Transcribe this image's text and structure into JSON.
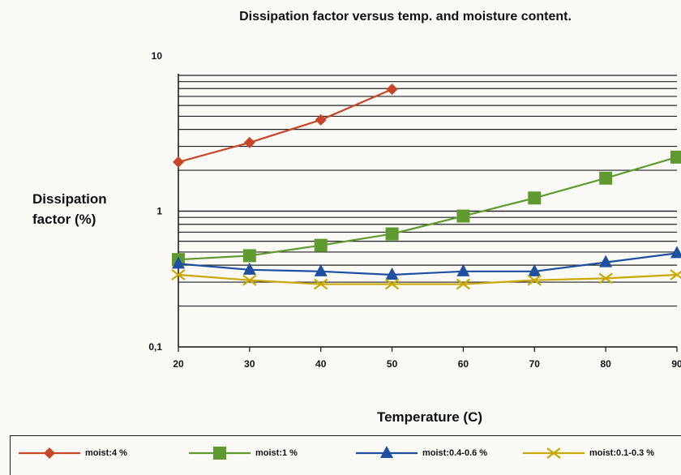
{
  "chart_data": {
    "type": "line",
    "title": "Dissipation factor versus temp. and moisture content.",
    "xlabel": "Temperature (C)",
    "ylabel": "Dissipation factor (%)",
    "yscale": "log",
    "ylim": [
      0.1,
      10
    ],
    "xlim": [
      20,
      90
    ],
    "x_ticks": [
      "20",
      "30",
      "40",
      "50",
      "60",
      "70",
      "80",
      "90"
    ],
    "y_ticks": [
      {
        "value": 10,
        "label": "10"
      },
      {
        "value": 1,
        "label": "1"
      },
      {
        "value": 0.1,
        "label": "0,1"
      }
    ],
    "grid": "horizontal",
    "legend_position": "bottom",
    "series": [
      {
        "name": "moist:4 %",
        "color": "#c8452a",
        "marker": "diamond",
        "x": [
          20,
          30,
          40,
          50
        ],
        "values": [
          2.3,
          3.2,
          4.7,
          7.9
        ]
      },
      {
        "name": "moist:1 %",
        "color": "#5e9a30",
        "marker": "square",
        "x": [
          20,
          30,
          40,
          50,
          60,
          70,
          80,
          90
        ],
        "values": [
          0.44,
          0.47,
          0.56,
          0.68,
          0.92,
          1.25,
          1.75,
          2.5
        ]
      },
      {
        "name": "moist:0.4-0.6 %",
        "color": "#1f4fa0",
        "marker": "triangle",
        "x": [
          20,
          30,
          40,
          50,
          60,
          70,
          80,
          90
        ],
        "values": [
          0.41,
          0.37,
          0.36,
          0.34,
          0.36,
          0.36,
          0.42,
          0.49
        ]
      },
      {
        "name": "moist:0.1-0.3 %",
        "color": "#c9a800",
        "marker": "x",
        "x": [
          20,
          30,
          40,
          50,
          60,
          70,
          80,
          90
        ],
        "values": [
          0.34,
          0.31,
          0.29,
          0.29,
          0.29,
          0.31,
          0.32,
          0.34
        ]
      }
    ]
  }
}
